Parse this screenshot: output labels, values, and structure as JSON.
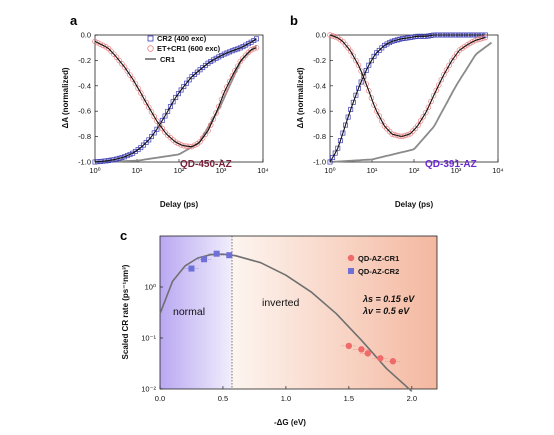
{
  "panels": {
    "a": {
      "label": "a",
      "ylabel": "ΔA (normalized)",
      "xlabel": "Delay (ps)",
      "sample": "QD-450-AZ",
      "legend": [
        "CR2 (400 exc)",
        "ET+CR1 (600 exc)",
        "CR1"
      ]
    },
    "b": {
      "label": "b",
      "ylabel": "ΔA (normalized)",
      "xlabel": "Delay (ps)",
      "sample": "QD-391-AZ"
    },
    "c": {
      "label": "c",
      "ylabel": "Scaled CR rate (ps⁻¹nm³)",
      "xlabel": "-ΔG (eV)",
      "legend": [
        "QD-AZ-CR1",
        "QD-AZ-CR2"
      ],
      "region_normal": "normal",
      "region_inverted": "inverted",
      "param_s": "λs = 0.15 eV",
      "param_v": "λv = 0.5 eV"
    }
  },
  "colors": {
    "cr2": "#3b3bb5",
    "cr1": "#e88080",
    "fit": "#111111",
    "cr1fit": "#8a8a8a",
    "tag_a": "#7a1f3a",
    "tag_b": "#6a2ad0",
    "cr1pts": "#f06a6a",
    "cr2pts": "#6f6fd8"
  },
  "chart_data": [
    {
      "type": "scatter",
      "panel": "a",
      "xscale": "log",
      "xlim": [
        1,
        10000
      ],
      "ylim": [
        -1.0,
        0.0
      ],
      "xticks": [
        "10⁰",
        "10¹",
        "10²",
        "10³",
        "10⁴"
      ],
      "yticks": [
        "0.0",
        "-0.2",
        "-0.4",
        "-0.6",
        "-0.8",
        "-1.0"
      ],
      "series": [
        {
          "name": "CR2 (400 exc)",
          "marker": "square",
          "x": [
            1,
            2,
            3,
            5,
            8,
            12,
            20,
            30,
            50,
            80,
            120,
            200,
            300,
            500,
            800,
            1200,
            2000,
            3000,
            5000,
            7000
          ],
          "y": [
            -1.0,
            -0.99,
            -0.98,
            -0.96,
            -0.93,
            -0.89,
            -0.82,
            -0.74,
            -0.62,
            -0.5,
            -0.42,
            -0.33,
            -0.28,
            -0.22,
            -0.18,
            -0.15,
            -0.12,
            -0.1,
            -0.06,
            -0.03
          ]
        },
        {
          "name": "ET+CR1 (600 exc)",
          "marker": "circle",
          "x": [
            1,
            2,
            3,
            5,
            8,
            12,
            20,
            30,
            50,
            80,
            120,
            200,
            300,
            500,
            800,
            1200,
            2000,
            3000,
            5000,
            7000
          ],
          "y": [
            -0.05,
            -0.1,
            -0.16,
            -0.25,
            -0.35,
            -0.45,
            -0.58,
            -0.68,
            -0.78,
            -0.84,
            -0.87,
            -0.88,
            -0.85,
            -0.75,
            -0.6,
            -0.45,
            -0.3,
            -0.2,
            -0.12,
            -0.1
          ]
        },
        {
          "name": "CR1",
          "marker": "line",
          "x": [
            1,
            10,
            100,
            300,
            1000,
            3000,
            7000
          ],
          "y": [
            -1.0,
            -0.99,
            -0.94,
            -0.85,
            -0.55,
            -0.2,
            -0.08
          ]
        }
      ]
    },
    {
      "type": "scatter",
      "panel": "b",
      "xscale": "log",
      "xlim": [
        1,
        10000
      ],
      "ylim": [
        -1.0,
        0.0
      ],
      "xticks": [
        "10⁰",
        "10¹",
        "10²",
        "10³",
        "10⁴"
      ],
      "yticks": [
        "0.0",
        "-0.2",
        "-0.4",
        "-0.6",
        "-0.8",
        "-1.0"
      ],
      "series": [
        {
          "name": "",
          "marker": "square",
          "x": [
            1,
            1.5,
            2,
            3,
            5,
            8,
            12,
            20,
            30,
            50,
            80,
            120,
            200,
            300,
            500,
            1000,
            2000,
            5000
          ],
          "y": [
            -1.0,
            -0.9,
            -0.78,
            -0.6,
            -0.4,
            -0.25,
            -0.15,
            -0.08,
            -0.05,
            -0.03,
            -0.02,
            -0.01,
            -0.01,
            0.0,
            0.0,
            0.0,
            0.0,
            0.0
          ]
        },
        {
          "name": "",
          "marker": "circle",
          "x": [
            1,
            1.5,
            2,
            3,
            5,
            8,
            12,
            20,
            30,
            50,
            80,
            120,
            200,
            300,
            500,
            800,
            1200,
            2000,
            3000,
            5000
          ],
          "y": [
            0.0,
            -0.02,
            -0.05,
            -0.12,
            -0.25,
            -0.42,
            -0.58,
            -0.72,
            -0.78,
            -0.8,
            -0.78,
            -0.72,
            -0.6,
            -0.47,
            -0.32,
            -0.2,
            -0.12,
            -0.07,
            -0.04,
            -0.02
          ]
        },
        {
          "name": "",
          "marker": "line",
          "x": [
            1,
            10,
            100,
            300,
            1000,
            3000,
            7000
          ],
          "y": [
            -1.0,
            -0.98,
            -0.9,
            -0.72,
            -0.4,
            -0.15,
            -0.06
          ]
        }
      ]
    },
    {
      "type": "scatter",
      "panel": "c",
      "yscale": "log",
      "xlim": [
        0.0,
        2.2
      ],
      "ylim": [
        0.01,
        10
      ],
      "xticks": [
        "0.0",
        "0.5",
        "1.0",
        "1.5",
        "2.0"
      ],
      "yticks": [
        "10⁰",
        "10⁻¹",
        "10⁻²"
      ],
      "series": [
        {
          "name": "QD-AZ-CR1",
          "marker": "circle",
          "x": [
            1.5,
            1.6,
            1.65,
            1.75,
            1.85
          ],
          "y": [
            0.07,
            0.06,
            0.05,
            0.04,
            0.035
          ]
        },
        {
          "name": "QD-AZ-CR2",
          "marker": "square",
          "x": [
            0.25,
            0.35,
            0.45,
            0.55
          ],
          "y": [
            2.3,
            3.5,
            4.5,
            4.2
          ]
        }
      ],
      "fit_curve": {
        "x": [
          0.0,
          0.1,
          0.2,
          0.3,
          0.4,
          0.5,
          0.6,
          0.8,
          1.0,
          1.2,
          1.4,
          1.6,
          1.8,
          2.0
        ],
        "y": [
          0.3,
          1.3,
          2.6,
          3.7,
          4.3,
          4.4,
          4.1,
          3.0,
          1.7,
          0.8,
          0.3,
          0.09,
          0.025,
          0.009
        ]
      },
      "vline_x": 0.58
    }
  ]
}
